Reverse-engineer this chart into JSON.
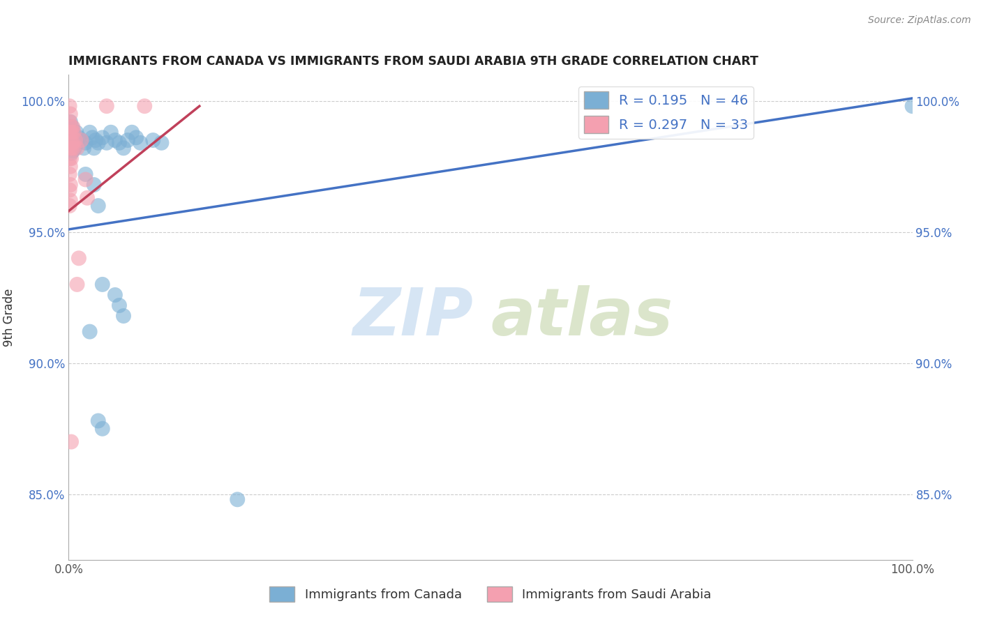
{
  "title": "IMMIGRANTS FROM CANADA VS IMMIGRANTS FROM SAUDI ARABIA 9TH GRADE CORRELATION CHART",
  "source": "Source: ZipAtlas.com",
  "ylabel": "9th Grade",
  "blue_color": "#7bafd4",
  "pink_color": "#f4a0b0",
  "trendline_blue": "#4472c4",
  "trendline_pink": "#c0405a",
  "bottom_legend": [
    "Immigrants from Canada",
    "Immigrants from Saudi Arabia"
  ],
  "canada_points": [
    [
      0.001,
      0.99
    ],
    [
      0.002,
      0.985
    ],
    [
      0.002,
      0.992
    ],
    [
      0.003,
      0.988
    ],
    [
      0.003,
      0.98
    ],
    [
      0.004,
      0.99
    ],
    [
      0.004,
      0.983
    ],
    [
      0.005,
      0.988
    ],
    [
      0.005,
      0.981
    ],
    [
      0.006,
      0.985
    ],
    [
      0.007,
      0.982
    ],
    [
      0.008,
      0.986
    ],
    [
      0.009,
      0.988
    ],
    [
      0.01,
      0.984
    ],
    [
      0.012,
      0.986
    ],
    [
      0.015,
      0.985
    ],
    [
      0.018,
      0.982
    ],
    [
      0.02,
      0.984
    ],
    [
      0.025,
      0.988
    ],
    [
      0.028,
      0.986
    ],
    [
      0.03,
      0.982
    ],
    [
      0.032,
      0.985
    ],
    [
      0.035,
      0.984
    ],
    [
      0.04,
      0.986
    ],
    [
      0.045,
      0.984
    ],
    [
      0.05,
      0.988
    ],
    [
      0.055,
      0.985
    ],
    [
      0.06,
      0.984
    ],
    [
      0.065,
      0.982
    ],
    [
      0.07,
      0.985
    ],
    [
      0.075,
      0.988
    ],
    [
      0.08,
      0.986
    ],
    [
      0.085,
      0.984
    ],
    [
      0.1,
      0.985
    ],
    [
      0.11,
      0.984
    ],
    [
      0.02,
      0.972
    ],
    [
      0.03,
      0.968
    ],
    [
      0.035,
      0.96
    ],
    [
      0.04,
      0.93
    ],
    [
      0.055,
      0.926
    ],
    [
      0.06,
      0.922
    ],
    [
      0.065,
      0.918
    ],
    [
      0.025,
      0.912
    ],
    [
      0.035,
      0.878
    ],
    [
      0.04,
      0.875
    ],
    [
      0.2,
      0.848
    ],
    [
      1.0,
      0.998
    ]
  ],
  "saudi_points": [
    [
      0.001,
      0.998
    ],
    [
      0.001,
      0.992
    ],
    [
      0.001,
      0.988
    ],
    [
      0.001,
      0.983
    ],
    [
      0.001,
      0.978
    ],
    [
      0.001,
      0.972
    ],
    [
      0.001,
      0.966
    ],
    [
      0.001,
      0.96
    ],
    [
      0.002,
      0.995
    ],
    [
      0.002,
      0.988
    ],
    [
      0.002,
      0.982
    ],
    [
      0.002,
      0.975
    ],
    [
      0.002,
      0.968
    ],
    [
      0.002,
      0.962
    ],
    [
      0.003,
      0.99
    ],
    [
      0.003,
      0.984
    ],
    [
      0.003,
      0.978
    ],
    [
      0.004,
      0.988
    ],
    [
      0.004,
      0.982
    ],
    [
      0.005,
      0.99
    ],
    [
      0.005,
      0.984
    ],
    [
      0.006,
      0.988
    ],
    [
      0.006,
      0.982
    ],
    [
      0.008,
      0.985
    ],
    [
      0.01,
      0.982
    ],
    [
      0.015,
      0.985
    ],
    [
      0.02,
      0.97
    ],
    [
      0.022,
      0.963
    ],
    [
      0.012,
      0.94
    ],
    [
      0.01,
      0.93
    ],
    [
      0.003,
      0.87
    ],
    [
      0.045,
      0.998
    ],
    [
      0.09,
      0.998
    ]
  ],
  "xlim": [
    0.0,
    1.0
  ],
  "ylim": [
    0.825,
    1.01
  ],
  "y_ticks": [
    0.85,
    0.9,
    0.95,
    1.0
  ],
  "x_ticks": [
    0.0,
    1.0
  ],
  "blue_trend_x": [
    0.0,
    1.0
  ],
  "blue_trend_y": [
    0.951,
    1.001
  ],
  "pink_trend_x": [
    0.0,
    0.155
  ],
  "pink_trend_y": [
    0.958,
    0.998
  ]
}
